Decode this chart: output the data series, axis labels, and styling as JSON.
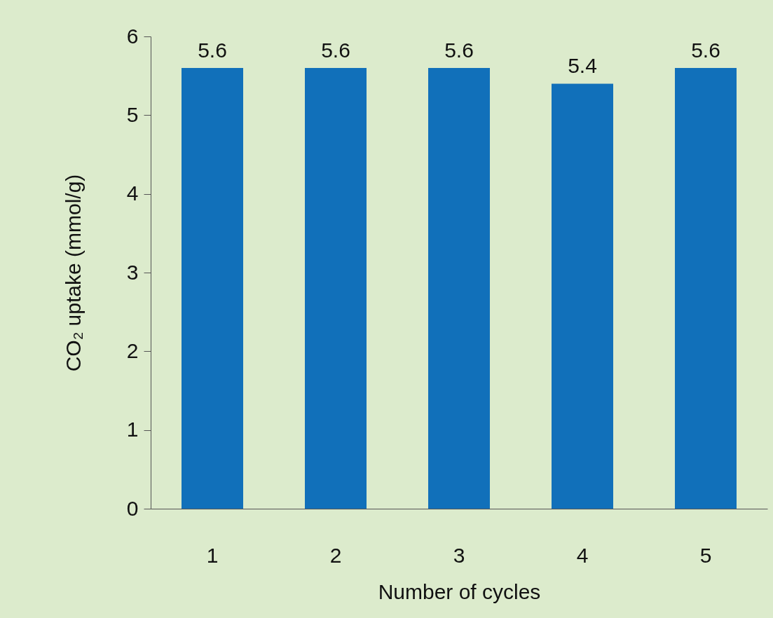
{
  "chart_data": {
    "type": "bar",
    "xlabel": "Number of cycles",
    "ylabel": "CO₂ uptake (mmol/g)",
    "categories": [
      "1",
      "2",
      "3",
      "4",
      "5"
    ],
    "values": [
      5.6,
      5.6,
      5.6,
      5.4,
      5.6
    ],
    "color": "#1170ba",
    "ylim": [
      0,
      6
    ],
    "yticks": [
      0,
      1,
      2,
      3,
      4,
      5,
      6
    ],
    "grid": false,
    "data_labels": true
  }
}
